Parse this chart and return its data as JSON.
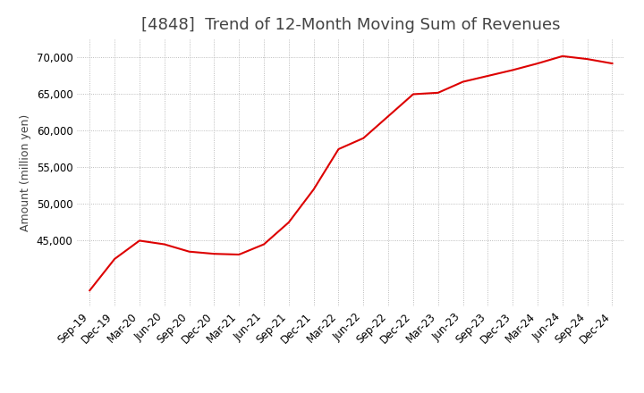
{
  "title": "[4848]  Trend of 12-Month Moving Sum of Revenues",
  "ylabel": "Amount (million yen)",
  "x_labels": [
    "Sep-19",
    "Dec-19",
    "Mar-20",
    "Jun-20",
    "Sep-20",
    "Dec-20",
    "Mar-21",
    "Jun-21",
    "Sep-21",
    "Dec-21",
    "Mar-22",
    "Jun-22",
    "Sep-22",
    "Dec-22",
    "Mar-23",
    "Jun-23",
    "Sep-23",
    "Dec-23",
    "Mar-24",
    "Jun-24",
    "Sep-24",
    "Dec-24"
  ],
  "values": [
    38200,
    42500,
    45000,
    44500,
    43500,
    43200,
    43100,
    44500,
    47500,
    52000,
    57500,
    59000,
    62000,
    65000,
    65200,
    66700,
    67500,
    68300,
    69200,
    70200,
    69800,
    69200
  ],
  "line_color": "#dd0000",
  "fill_color": "#f5b8b8",
  "background_color": "#ffffff",
  "grid_color": "#aaaaaa",
  "ylim": [
    36000,
    72500
  ],
  "yticks": [
    45000,
    50000,
    55000,
    60000,
    65000,
    70000
  ],
  "title_color": "#444444",
  "title_fontsize": 13,
  "axis_fontsize": 8.5,
  "ylabel_fontsize": 9
}
